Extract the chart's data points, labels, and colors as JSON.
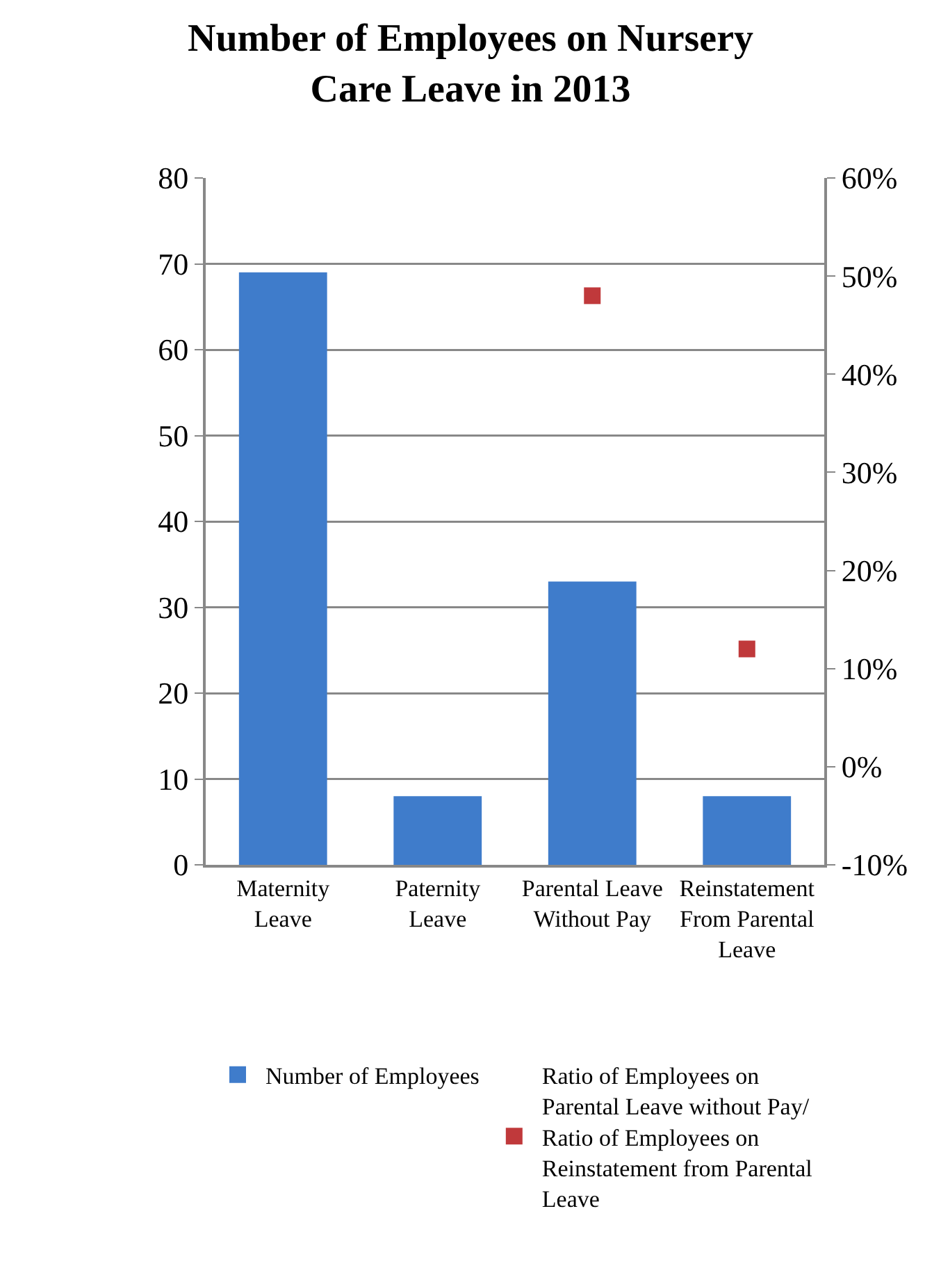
{
  "chart_data": {
    "type": "bar",
    "title": "Number of Employees on Nursery Care Leave in 2013",
    "categories": [
      "Maternity Leave",
      "Paternity Leave",
      "Parental Leave Without Pay",
      "Reinstatement From Parental Leave"
    ],
    "series": [
      {
        "name": "Number of Employees",
        "color": "#3f7ccb",
        "values": [
          69,
          8,
          33,
          8
        ]
      },
      {
        "name": "Ratio of Employees on Parental Leave without Pay/ Ratio of Employees on Reinstatement from Parental Leave",
        "type": "scatter",
        "axis": "y2",
        "color": "#c0393b",
        "marker": "square",
        "values": [
          null,
          null,
          48,
          12
        ]
      }
    ],
    "ylim": [
      0,
      80
    ],
    "yticks": [
      0,
      10,
      20,
      30,
      40,
      50,
      60,
      70,
      80
    ],
    "y2lim": [
      -10,
      60
    ],
    "y2ticks": [
      {
        "value": -10,
        "label": "-10%"
      },
      {
        "value": 0,
        "label": "0%"
      },
      {
        "value": 10,
        "label": "10%"
      },
      {
        "value": 20,
        "label": "20%"
      },
      {
        "value": 30,
        "label": "30%"
      },
      {
        "value": 40,
        "label": "40%"
      },
      {
        "value": 50,
        "label": "50%"
      },
      {
        "value": 60,
        "label": "60%"
      }
    ],
    "grid": "y",
    "legend": "bottom"
  }
}
